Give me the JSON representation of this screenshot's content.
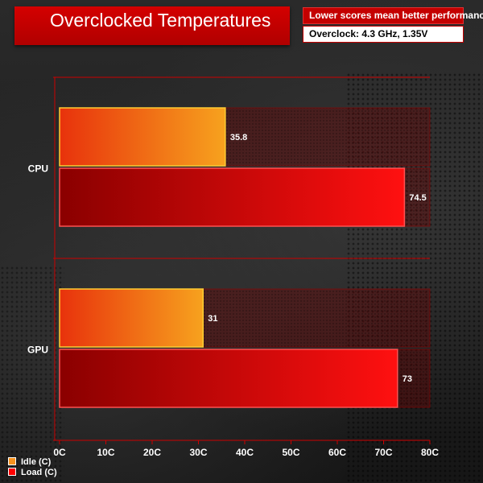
{
  "title": "Overclocked Temperatures",
  "notes": {
    "subtitle": "Lower scores mean better performance",
    "overclock": "Overclock: 4.3 GHz, 1.35V"
  },
  "colors": {
    "idle": "#f7931e",
    "load": "#ff0000",
    "title_bg": "#c80000",
    "grid": "#cc0000"
  },
  "chart_data": {
    "type": "bar",
    "orientation": "horizontal",
    "categories": [
      "CPU",
      "GPU"
    ],
    "series": [
      {
        "name": "Idle (C)",
        "values": [
          35.8,
          31
        ]
      },
      {
        "name": "Load (C)",
        "values": [
          74.5,
          73
        ]
      }
    ],
    "xlim": [
      0,
      80
    ],
    "x_ticks": [
      "0C",
      "10C",
      "20C",
      "30C",
      "40C",
      "50C",
      "60C",
      "70C",
      "80C"
    ],
    "data_labels": [
      [
        "35.8",
        "31"
      ],
      [
        "74.5",
        "73"
      ]
    ],
    "legend_position": "bottom-left",
    "grid": true
  }
}
